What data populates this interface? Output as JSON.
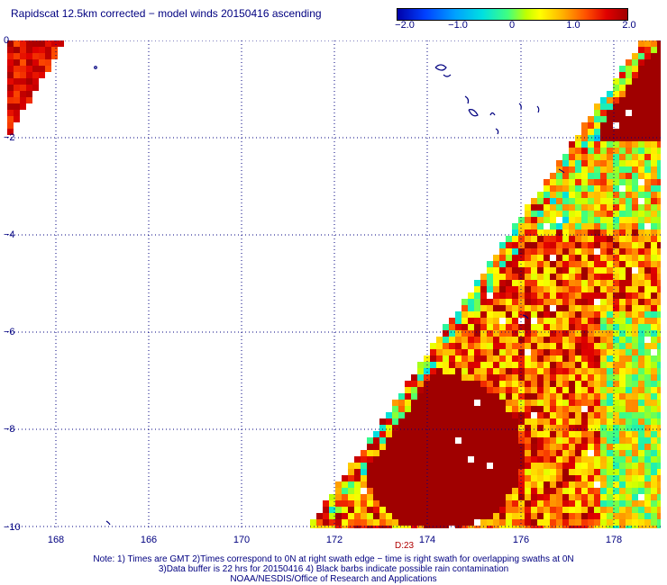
{
  "title": "Rapidscat 12.5km corrected − model winds 20150416 ascending",
  "colorbar": {
    "ticks": [
      "−2.0",
      "−1.0",
      "0",
      "1.0",
      "2.0"
    ],
    "range": [
      -2.0,
      2.0
    ],
    "colors": [
      "#0000aa",
      "#00a0ff",
      "#40ff80",
      "#ffff00",
      "#ff5000",
      "#a00000"
    ]
  },
  "axes": {
    "lat_ticks": [
      "0",
      "−2",
      "−4",
      "−6",
      "−8",
      "−10"
    ],
    "lon_ticks": [
      "168",
      "166",
      "170",
      "172",
      "174",
      "176",
      "178"
    ],
    "lon_range": [
      165.8,
      179.0
    ],
    "lat_range": [
      0,
      -10
    ],
    "grid": true,
    "grid_color": "#000080"
  },
  "time_stamp": "D:23",
  "notes": {
    "line1": "Note: 1) Times are GMT 2)Times correspond to 0N at right swath edge − time is right swath for overlapping swaths at 0N",
    "line2": "3)Data buffer is 22 hrs for 20150416 4) Black barbs indicate possible rain contamination",
    "line3": "NOAA/NESDIS/Office of Research and Applications"
  }
}
